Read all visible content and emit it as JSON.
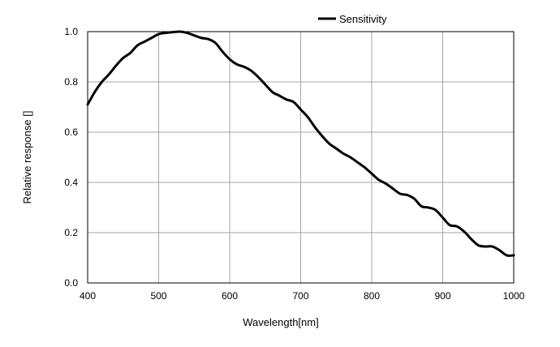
{
  "chart_data": {
    "type": "line",
    "xlabel": "Wavelength[nm]",
    "ylabel": "Relative response []",
    "xlim": [
      400,
      1000
    ],
    "ylim": [
      0.0,
      1.0
    ],
    "x_ticks": [
      "400",
      "500",
      "600",
      "700",
      "800",
      "900",
      "1000"
    ],
    "y_ticks": [
      "0.0",
      "0.2",
      "0.4",
      "0.6",
      "0.8",
      "1.0"
    ],
    "grid": true,
    "legend_position": "top-center",
    "series": [
      {
        "name": "Sensitivity",
        "color": "#000000",
        "x": [
          400,
          410,
          420,
          430,
          440,
          450,
          460,
          470,
          480,
          490,
          500,
          510,
          520,
          530,
          540,
          550,
          560,
          570,
          580,
          590,
          600,
          610,
          620,
          630,
          640,
          650,
          660,
          670,
          680,
          690,
          700,
          710,
          720,
          730,
          740,
          750,
          760,
          770,
          780,
          790,
          800,
          810,
          820,
          830,
          840,
          850,
          860,
          870,
          880,
          890,
          900,
          910,
          920,
          930,
          940,
          950,
          960,
          970,
          980,
          990,
          1000
        ],
        "y": [
          0.71,
          0.76,
          0.8,
          0.83,
          0.865,
          0.895,
          0.915,
          0.945,
          0.96,
          0.975,
          0.99,
          0.995,
          0.998,
          1.0,
          0.995,
          0.985,
          0.975,
          0.97,
          0.955,
          0.92,
          0.89,
          0.87,
          0.86,
          0.845,
          0.82,
          0.79,
          0.76,
          0.745,
          0.73,
          0.72,
          0.69,
          0.66,
          0.62,
          0.585,
          0.555,
          0.535,
          0.515,
          0.5,
          0.48,
          0.46,
          0.435,
          0.41,
          0.395,
          0.375,
          0.355,
          0.35,
          0.335,
          0.305,
          0.3,
          0.29,
          0.26,
          0.23,
          0.225,
          0.205,
          0.175,
          0.15,
          0.145,
          0.145,
          0.13,
          0.11,
          0.11
        ]
      }
    ]
  }
}
